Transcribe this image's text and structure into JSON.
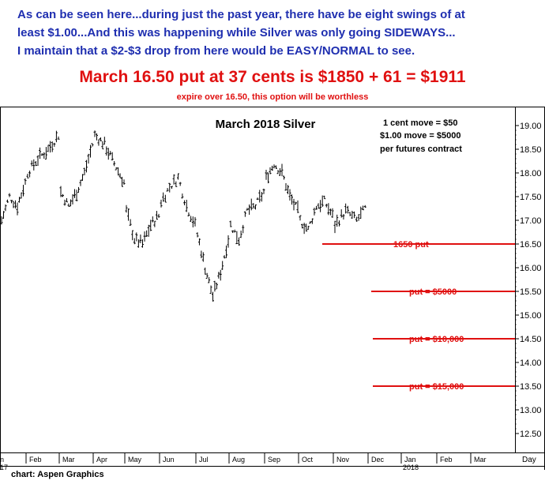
{
  "header": {
    "line1": "As can be seen here...during just the past year, there have be eight swings of at",
    "line2": "least $1.00...And this was happening while Silver was only going SIDEWAYS...",
    "line3": "I maintain that a $2-$3 drop from here would be EASY/NORMAL to see.",
    "headline": "March 16.50 put at 37 cents is $1850 + 61 = $1911",
    "subline": "expire over 16.50, this option will be worthless"
  },
  "footer": {
    "credit": "chart: Aspen Graphics"
  },
  "colors": {
    "header_blue": "#1f2fb0",
    "accent_red": "#e01010",
    "bars": "#000000"
  },
  "chart_data": {
    "type": "ohlc",
    "title": "March 2018 Silver",
    "notes": [
      "1 cent move = $50",
      "$1.00 move = $5000",
      "per futures contract"
    ],
    "xlabel": "Day",
    "x_ticks": [
      "Jan",
      "Feb",
      "Mar",
      "Apr",
      "May",
      "Jun",
      "Jul",
      "Aug",
      "Sep",
      "Oct",
      "Nov",
      "Dec",
      "Jan",
      "Feb",
      "Mar"
    ],
    "x_tick_partial_first": "n",
    "year_labels": [
      "17",
      "2018"
    ],
    "y_ticks": [
      "19.00",
      "18.50",
      "18.00",
      "17.50",
      "17.00",
      "16.50",
      "16.00",
      "15.50",
      "15.00",
      "14.50",
      "14.00",
      "13.50",
      "13.00",
      "12.50"
    ],
    "ylim": [
      12.2,
      19.2
    ],
    "grid": false,
    "series_monthly_path": [
      {
        "month": "Jan",
        "prices": [
          17.0,
          17.5,
          17.3,
          17.8
        ]
      },
      {
        "month": "Feb",
        "prices": [
          18.0,
          18.3,
          18.5,
          18.8
        ]
      },
      {
        "month": "Mar",
        "prices": [
          17.6,
          17.3,
          17.6,
          18.0,
          18.6
        ]
      },
      {
        "month": "Apr",
        "prices": [
          18.8,
          18.6,
          18.2,
          17.8
        ]
      },
      {
        "month": "May",
        "prices": [
          17.2,
          16.6,
          16.5,
          16.9,
          17.1
        ]
      },
      {
        "month": "Jun",
        "prices": [
          17.4,
          17.7,
          17.9,
          17.3,
          16.9
        ]
      },
      {
        "month": "Jul",
        "prices": [
          16.7,
          16.0,
          15.4,
          15.9,
          16.6
        ]
      },
      {
        "month": "Aug",
        "prices": [
          16.9,
          16.6,
          17.2,
          17.3,
          17.6
        ]
      },
      {
        "month": "Sep",
        "prices": [
          17.9,
          18.2,
          18.0,
          17.5,
          17.2
        ]
      },
      {
        "month": "Oct",
        "prices": [
          17.0,
          16.8,
          17.3,
          17.4,
          17.1
        ]
      },
      {
        "month": "Nov",
        "prices": [
          16.9,
          17.2,
          17.0,
          17.3
        ]
      }
    ],
    "annotations": [
      {
        "label": "1650 put",
        "y": 16.5
      },
      {
        "label": "put = $5000",
        "y": 15.5
      },
      {
        "label": "put = $10,000",
        "y": 14.5
      },
      {
        "label": "put = $15,000",
        "y": 13.5
      }
    ]
  }
}
